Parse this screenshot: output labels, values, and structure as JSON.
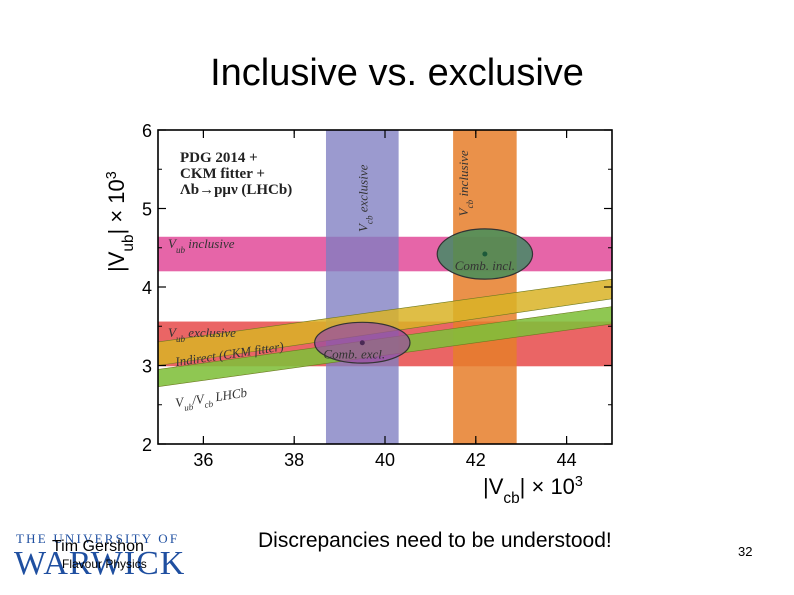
{
  "slide": {
    "title": "Inclusive vs. exclusive",
    "footer_author": "Tim Gershon",
    "footer_subject": "Flavour Physics",
    "message": "Discrepancies need to be understood!",
    "page_number": "32",
    "logo_top": "THE UNIVERSITY OF",
    "logo_main": "WARWICK"
  },
  "chart_data": {
    "type": "band-overlay",
    "xlabel_main": "|V",
    "xlabel_sub": "cb",
    "xlabel_tail": "| × 10",
    "xlabel_exp": "3",
    "ylabel_main": "|V",
    "ylabel_sub": "ub",
    "ylabel_tail": "| × 10",
    "ylabel_exp": "3",
    "xlim": [
      35,
      45
    ],
    "ylim": [
      2,
      6
    ],
    "xticks": [
      36,
      38,
      40,
      42,
      44
    ],
    "yticks": [
      2,
      3,
      4,
      5,
      6
    ],
    "legend_lines": [
      "PDG 2014 +",
      "CKM fitter +",
      "Λb→pμν (LHCb)"
    ],
    "colors": {
      "vcb_exclusive": "#7f7ec2",
      "vcb_inclusive": "#e67e2a",
      "vub_inclusive": "#e24a99",
      "vub_exclusive": "#e64a4a",
      "indirect": "#d9b326",
      "lhcb": "#7fbf3a",
      "ellipse_incl": "#2e8f5e",
      "ellipse_excl": "#9a4fa0"
    },
    "vertical_bands": [
      {
        "label_main": "V",
        "label_sub": "cb",
        "label_tail": " exclusive",
        "xmin": 38.7,
        "xmax": 40.3
      },
      {
        "label_main": "V",
        "label_sub": "cb",
        "label_tail": " inclusive",
        "xmin": 41.5,
        "xmax": 42.9
      }
    ],
    "horizontal_bands": [
      {
        "label_main": "V",
        "label_sub": "ub",
        "label_tail": " inclusive",
        "ymin": 4.2,
        "ymax": 4.64
      },
      {
        "label_main": "V",
        "label_sub": "ub",
        "label_tail": " exclusive",
        "ymin": 2.99,
        "ymax": 3.56
      }
    ],
    "sloped_bands": [
      {
        "label": "Indirect (CKM fitter)",
        "left_low": 3.0,
        "left_high": 3.3,
        "right_low": 3.85,
        "right_high": 4.1
      },
      {
        "label_main": "V",
        "label_sub": "ub",
        "label_mid": "/V",
        "label_sub2": "cb",
        "label_tail": " LHCb",
        "left_low": 2.73,
        "left_high": 2.95,
        "right_low": 3.53,
        "right_high": 3.75
      }
    ],
    "ellipses": [
      {
        "label": "Comb. incl.",
        "cx": 42.2,
        "cy": 4.42,
        "rx": 1.05,
        "ry": 0.32
      },
      {
        "label": "Comb. excl.",
        "cx": 39.5,
        "cy": 3.29,
        "rx": 1.05,
        "ry": 0.26
      }
    ]
  }
}
